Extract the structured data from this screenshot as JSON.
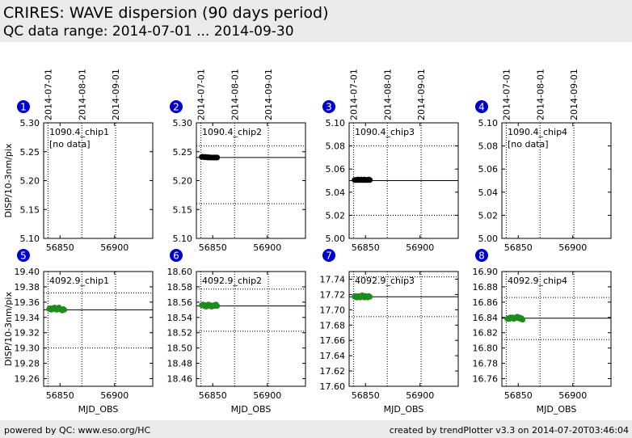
{
  "header": {
    "title": "CRIRES: WAVE dispersion (90 days period)",
    "subtitle": "QC data range: 2014-07-01 ... 2014-09-30"
  },
  "footer": {
    "left": "powered by QC: www.eso.org/HC",
    "right": "created by trendPlotter v3.3 on 2014-07-20T03:46:04"
  },
  "colors": {
    "row1_points": "#000000",
    "row2_points": "#1e8c1e",
    "marker": "#0000cc"
  },
  "date_ticks": [
    {
      "label": "2014-07-01",
      "mjd": 56839
    },
    {
      "label": "2014-08-01",
      "mjd": 56870
    },
    {
      "label": "2014-09-01",
      "mjd": 56901
    }
  ],
  "chart_data": [
    {
      "type": "scatter",
      "panel": "1",
      "label": "1090.4_chip1",
      "note": "[no data]",
      "ylabel": "DISP/10-3nm/pix",
      "xlabel": "",
      "xlim": [
        56835,
        56935
      ],
      "ylim": [
        5.1,
        5.3
      ],
      "yticks": [
        "5.30",
        "5.25",
        "5.20",
        "5.15",
        "5.10"
      ],
      "xticks": [
        56850,
        56900
      ],
      "ref_line": null,
      "hgrid": [],
      "points": []
    },
    {
      "type": "scatter",
      "panel": "2",
      "label": "1090.4_chip2",
      "note": "",
      "ylabel": "",
      "xlabel": "",
      "xlim": [
        56835,
        56935
      ],
      "ylim": [
        5.1,
        5.3
      ],
      "yticks": [
        "5.30",
        "5.25",
        "5.20",
        "5.15",
        "5.10"
      ],
      "xticks": [
        56850,
        56900
      ],
      "ref_line": 5.24,
      "hgrid": [
        5.26,
        5.16
      ],
      "points": [
        [
          56840,
          5.241
        ],
        [
          56841,
          5.241
        ],
        [
          56842,
          5.2405
        ],
        [
          56843,
          5.241
        ],
        [
          56844,
          5.2405
        ],
        [
          56845,
          5.24
        ],
        [
          56846,
          5.2405
        ],
        [
          56847,
          5.24
        ],
        [
          56848,
          5.24
        ],
        [
          56849,
          5.24
        ],
        [
          56850,
          5.24
        ],
        [
          56851,
          5.24
        ],
        [
          56852,
          5.24
        ],
        [
          56853,
          5.24
        ],
        [
          56854,
          5.24
        ]
      ]
    },
    {
      "type": "scatter",
      "panel": "3",
      "label": "1090.4_chip3",
      "note": "",
      "ylabel": "",
      "xlabel": "",
      "xlim": [
        56835,
        56935
      ],
      "ylim": [
        5.0,
        5.1
      ],
      "yticks": [
        "5.10",
        "5.08",
        "5.06",
        "5.04",
        "5.02",
        "5.00"
      ],
      "xticks": [
        56850,
        56900
      ],
      "ref_line": 5.05,
      "hgrid": [
        5.08,
        5.02
      ],
      "points": [
        [
          56840,
          5.0505
        ],
        [
          56841,
          5.0505
        ],
        [
          56842,
          5.0505
        ],
        [
          56843,
          5.051
        ],
        [
          56844,
          5.0505
        ],
        [
          56845,
          5.0505
        ],
        [
          56846,
          5.051
        ],
        [
          56847,
          5.0505
        ],
        [
          56848,
          5.0505
        ],
        [
          56849,
          5.051
        ],
        [
          56850,
          5.0505
        ],
        [
          56851,
          5.0505
        ],
        [
          56852,
          5.0505
        ],
        [
          56853,
          5.051
        ],
        [
          56854,
          5.0505
        ]
      ]
    },
    {
      "type": "scatter",
      "panel": "4",
      "label": "1090.4_chip4",
      "note": "[no data]",
      "ylabel": "",
      "xlabel": "",
      "xlim": [
        56835,
        56935
      ],
      "ylim": [
        5.0,
        5.1
      ],
      "yticks": [
        "5.10",
        "5.08",
        "5.06",
        "5.04",
        "5.02",
        "5.00"
      ],
      "xticks": [
        56850,
        56900
      ],
      "ref_line": null,
      "hgrid": [],
      "points": []
    },
    {
      "type": "scatter",
      "panel": "5",
      "label": "4092.9_chip1",
      "note": "",
      "ylabel": "DISP/10-3nm/pix",
      "xlabel": "MJD_OBS",
      "xlim": [
        56835,
        56935
      ],
      "ylim": [
        19.25,
        19.4
      ],
      "yticks": [
        "19.40",
        "19.38",
        "19.36",
        "19.34",
        "19.32",
        "19.30",
        "19.28",
        "19.26"
      ],
      "xticks": [
        56850,
        56900
      ],
      "ref_line": 19.35,
      "hgrid": [
        19.372,
        19.3
      ],
      "points": [
        [
          56840,
          19.351
        ],
        [
          56841,
          19.352
        ],
        [
          56842,
          19.35
        ],
        [
          56843,
          19.352
        ],
        [
          56844,
          19.351
        ],
        [
          56845,
          19.353
        ],
        [
          56846,
          19.351
        ],
        [
          56847,
          19.35
        ],
        [
          56848,
          19.352
        ],
        [
          56849,
          19.353
        ],
        [
          56850,
          19.351
        ],
        [
          56851,
          19.35
        ],
        [
          56852,
          19.349
        ],
        [
          56853,
          19.351
        ],
        [
          56854,
          19.35
        ]
      ]
    },
    {
      "type": "scatter",
      "panel": "6",
      "label": "4092.9_chip2",
      "note": "",
      "ylabel": "",
      "xlabel": "MJD_OBS",
      "xlim": [
        56835,
        56935
      ],
      "ylim": [
        18.45,
        18.6
      ],
      "yticks": [
        "18.60",
        "18.58",
        "18.56",
        "18.54",
        "18.52",
        "18.50",
        "18.48",
        "18.46"
      ],
      "xticks": [
        56850,
        56900
      ],
      "ref_line": 18.555,
      "hgrid": [
        18.577,
        18.522
      ],
      "points": [
        [
          56840,
          18.556
        ],
        [
          56841,
          18.557
        ],
        [
          56842,
          18.555
        ],
        [
          56843,
          18.556
        ],
        [
          56844,
          18.554
        ],
        [
          56845,
          18.556
        ],
        [
          56846,
          18.557
        ],
        [
          56847,
          18.555
        ],
        [
          56848,
          18.556
        ],
        [
          56849,
          18.554
        ],
        [
          56850,
          18.555
        ],
        [
          56851,
          18.556
        ],
        [
          56852,
          18.555
        ],
        [
          56853,
          18.557
        ],
        [
          56854,
          18.555
        ]
      ]
    },
    {
      "type": "scatter",
      "panel": "7",
      "label": "4092.9_chip3",
      "note": "",
      "ylabel": "",
      "xlabel": "MJD_OBS",
      "xlim": [
        56835,
        56935
      ],
      "ylim": [
        17.6,
        17.75
      ],
      "yticks": [
        "17.74",
        "17.72",
        "17.70",
        "17.68",
        "17.66",
        "17.64",
        "17.62",
        "17.60"
      ],
      "xticks": [
        56850,
        56900
      ],
      "ref_line": 17.717,
      "hgrid": [
        17.743,
        17.691
      ],
      "points": [
        [
          56840,
          17.717
        ],
        [
          56841,
          17.718
        ],
        [
          56842,
          17.716
        ],
        [
          56843,
          17.717
        ],
        [
          56844,
          17.718
        ],
        [
          56845,
          17.716
        ],
        [
          56846,
          17.717
        ],
        [
          56847,
          17.719
        ],
        [
          56848,
          17.717
        ],
        [
          56849,
          17.716
        ],
        [
          56850,
          17.718
        ],
        [
          56851,
          17.717
        ],
        [
          56852,
          17.716
        ],
        [
          56853,
          17.718
        ],
        [
          56854,
          17.717
        ]
      ]
    },
    {
      "type": "scatter",
      "panel": "8",
      "label": "4092.9_chip4",
      "note": "",
      "ylabel": "",
      "xlabel": "MJD_OBS",
      "xlim": [
        56835,
        56935
      ],
      "ylim": [
        16.75,
        16.9
      ],
      "yticks": [
        "16.90",
        "16.88",
        "16.86",
        "16.84",
        "16.82",
        "16.80",
        "16.78",
        "16.76"
      ],
      "xticks": [
        56850,
        56900
      ],
      "ref_line": 16.839,
      "hgrid": [
        16.866,
        16.811
      ],
      "points": [
        [
          56840,
          16.838
        ],
        [
          56841,
          16.839
        ],
        [
          56842,
          16.838
        ],
        [
          56843,
          16.84
        ],
        [
          56844,
          16.839
        ],
        [
          56845,
          16.84
        ],
        [
          56846,
          16.838
        ],
        [
          56847,
          16.839
        ],
        [
          56848,
          16.84
        ],
        [
          56849,
          16.841
        ],
        [
          56850,
          16.839
        ],
        [
          56851,
          16.84
        ],
        [
          56852,
          16.838
        ],
        [
          56853,
          16.839
        ],
        [
          56854,
          16.837
        ]
      ]
    }
  ]
}
